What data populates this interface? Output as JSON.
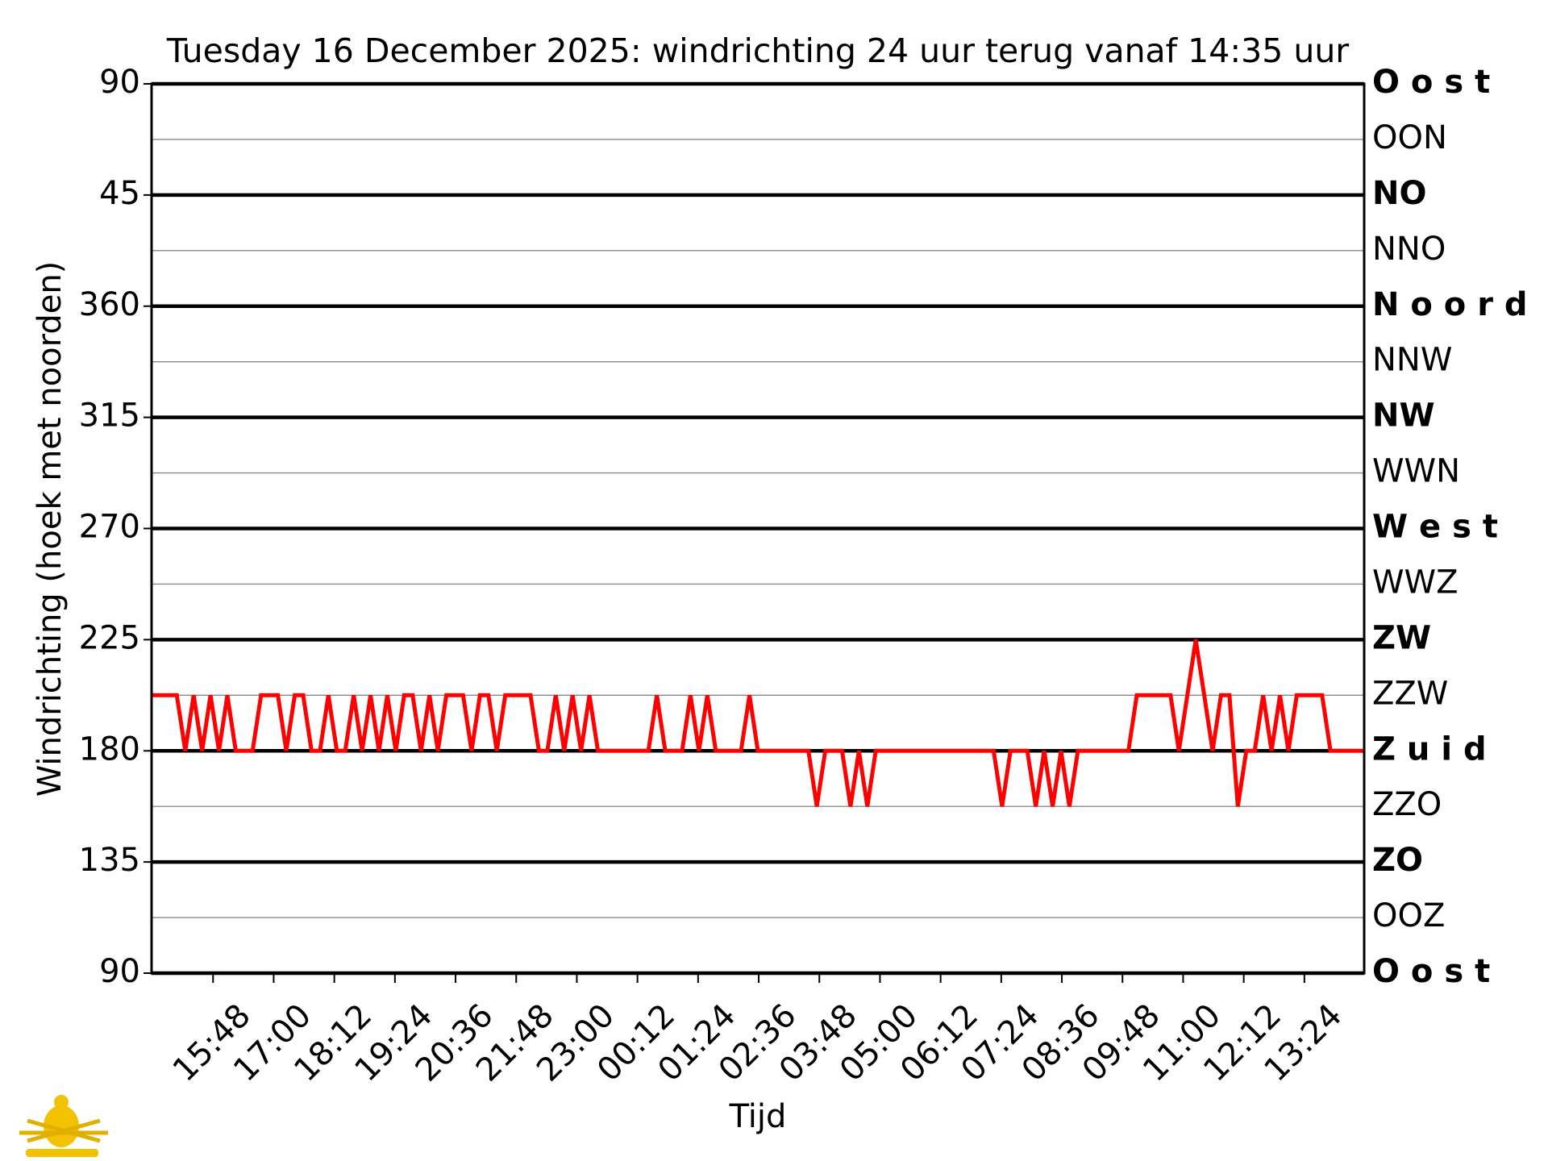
{
  "chart_data": {
    "type": "line",
    "title": "Tuesday 16 December 2025: windrichting 24 uur terug vanaf 14:35 uur",
    "xlabel": "Tijd",
    "ylabel": "Windrichting (hoek met noorden)",
    "xlim": [
      "2025-12-15 14:35",
      "2025-12-16 14:35"
    ],
    "xticks": [
      {
        "value": "2025-12-15 15:48",
        "label": "15:48"
      },
      {
        "value": "2025-12-15 17:00",
        "label": "17:00"
      },
      {
        "value": "2025-12-15 18:12",
        "label": "18:12"
      },
      {
        "value": "2025-12-15 19:24",
        "label": "19:24"
      },
      {
        "value": "2025-12-15 20:36",
        "label": "20:36"
      },
      {
        "value": "2025-12-15 21:48",
        "label": "21:48"
      },
      {
        "value": "2025-12-15 23:00",
        "label": "23:00"
      },
      {
        "value": "2025-12-16 00:12",
        "label": "00:12"
      },
      {
        "value": "2025-12-16 01:24",
        "label": "01:24"
      },
      {
        "value": "2025-12-16 02:36",
        "label": "02:36"
      },
      {
        "value": "2025-12-16 03:48",
        "label": "03:48"
      },
      {
        "value": "2025-12-16 05:00",
        "label": "05:00"
      },
      {
        "value": "2025-12-16 06:12",
        "label": "06:12"
      },
      {
        "value": "2025-12-16 07:24",
        "label": "07:24"
      },
      {
        "value": "2025-12-16 08:36",
        "label": "08:36"
      },
      {
        "value": "2025-12-16 09:48",
        "label": "09:48"
      },
      {
        "value": "2025-12-16 11:00",
        "label": "11:00"
      },
      {
        "value": "2025-12-16 12:12",
        "label": "12:12"
      },
      {
        "value": "2025-12-16 13:24",
        "label": "13:24"
      }
    ],
    "ylim": [
      90,
      450
    ],
    "yticks": [
      90,
      135,
      180,
      225,
      270,
      315,
      360,
      {
        "value": 405,
        "label": "45"
      },
      {
        "value": 450,
        "label": "90"
      }
    ],
    "y2lim": [
      90,
      450
    ],
    "y2ticks": [
      {
        "value": 90,
        "label": "O o s t"
      },
      {
        "value": 112.5,
        "label": "OOZ"
      },
      {
        "value": 135,
        "label": "ZO"
      },
      {
        "value": 157.5,
        "label": "ZZO"
      },
      {
        "value": 180,
        "label": "Z u i d"
      },
      {
        "value": 202.5,
        "label": "ZZW"
      },
      {
        "value": 225,
        "label": "ZW"
      },
      {
        "value": 247.5,
        "label": "WWZ"
      },
      {
        "value": 270,
        "label": "W e s t"
      },
      {
        "value": 292.5,
        "label": "WWN"
      },
      {
        "value": 315,
        "label": "NW"
      },
      {
        "value": 337.5,
        "label": "NNW"
      },
      {
        "value": 360,
        "label": "N o o r d"
      },
      {
        "value": 382.5,
        "label": "NNO"
      },
      {
        "value": 405,
        "label": "NO"
      },
      {
        "value": 427.5,
        "label": "OON"
      },
      {
        "value": 450,
        "label": "O o s t"
      }
    ],
    "grid": true,
    "x": [
      "2025-12-15 14:35",
      "2025-12-15 14:45",
      "2025-12-15 14:55",
      "2025-12-15 15:05",
      "2025-12-15 15:15",
      "2025-12-15 15:25",
      "2025-12-15 15:35",
      "2025-12-15 15:45",
      "2025-12-15 15:55",
      "2025-12-15 16:05",
      "2025-12-15 16:15",
      "2025-12-15 16:25",
      "2025-12-15 16:35",
      "2025-12-15 16:45",
      "2025-12-15 16:55",
      "2025-12-15 17:05",
      "2025-12-15 17:15",
      "2025-12-15 17:25",
      "2025-12-15 17:35",
      "2025-12-15 17:45",
      "2025-12-15 17:55",
      "2025-12-15 18:05",
      "2025-12-15 18:15",
      "2025-12-15 18:25",
      "2025-12-15 18:35",
      "2025-12-15 18:45",
      "2025-12-15 18:55",
      "2025-12-15 19:05",
      "2025-12-15 19:15",
      "2025-12-15 19:25",
      "2025-12-15 19:35",
      "2025-12-15 19:45",
      "2025-12-15 19:55",
      "2025-12-15 20:05",
      "2025-12-15 20:15",
      "2025-12-15 20:25",
      "2025-12-15 20:35",
      "2025-12-15 20:45",
      "2025-12-15 20:55",
      "2025-12-15 21:05",
      "2025-12-15 21:15",
      "2025-12-15 21:25",
      "2025-12-15 21:35",
      "2025-12-15 21:45",
      "2025-12-15 21:55",
      "2025-12-15 22:05",
      "2025-12-15 22:15",
      "2025-12-15 22:25",
      "2025-12-15 22:35",
      "2025-12-15 22:45",
      "2025-12-15 22:55",
      "2025-12-15 23:05",
      "2025-12-15 23:15",
      "2025-12-15 23:25",
      "2025-12-15 23:35",
      "2025-12-15 23:45",
      "2025-12-15 23:55",
      "2025-12-16 00:05",
      "2025-12-16 00:15",
      "2025-12-16 00:25",
      "2025-12-16 00:35",
      "2025-12-16 00:45",
      "2025-12-16 00:55",
      "2025-12-16 01:05",
      "2025-12-16 01:15",
      "2025-12-16 01:25",
      "2025-12-16 01:35",
      "2025-12-16 01:45",
      "2025-12-16 01:55",
      "2025-12-16 02:05",
      "2025-12-16 02:15",
      "2025-12-16 02:25",
      "2025-12-16 02:35",
      "2025-12-16 02:45",
      "2025-12-16 02:55",
      "2025-12-16 03:05",
      "2025-12-16 03:15",
      "2025-12-16 03:25",
      "2025-12-16 03:35",
      "2025-12-16 03:45",
      "2025-12-16 03:55",
      "2025-12-16 04:05",
      "2025-12-16 04:15",
      "2025-12-16 04:25",
      "2025-12-16 04:35",
      "2025-12-16 04:45",
      "2025-12-16 04:55",
      "2025-12-16 05:05",
      "2025-12-16 05:15",
      "2025-12-16 05:25",
      "2025-12-16 05:35",
      "2025-12-16 05:45",
      "2025-12-16 05:55",
      "2025-12-16 06:05",
      "2025-12-16 06:15",
      "2025-12-16 06:25",
      "2025-12-16 06:35",
      "2025-12-16 06:45",
      "2025-12-16 06:55",
      "2025-12-16 07:05",
      "2025-12-16 07:15",
      "2025-12-16 07:25",
      "2025-12-16 07:35",
      "2025-12-16 07:45",
      "2025-12-16 07:55",
      "2025-12-16 08:05",
      "2025-12-16 08:15",
      "2025-12-16 08:25",
      "2025-12-16 08:35",
      "2025-12-16 08:45",
      "2025-12-16 08:55",
      "2025-12-16 09:05",
      "2025-12-16 09:15",
      "2025-12-16 09:25",
      "2025-12-16 09:35",
      "2025-12-16 09:45",
      "2025-12-16 09:55",
      "2025-12-16 10:05",
      "2025-12-16 10:15",
      "2025-12-16 10:25",
      "2025-12-16 10:35",
      "2025-12-16 10:45",
      "2025-12-16 10:55",
      "2025-12-16 11:05",
      "2025-12-16 11:15",
      "2025-12-16 11:25",
      "2025-12-16 11:35",
      "2025-12-16 11:45",
      "2025-12-16 11:55",
      "2025-12-16 12:05",
      "2025-12-16 12:15",
      "2025-12-16 12:25",
      "2025-12-16 12:35",
      "2025-12-16 12:45",
      "2025-12-16 12:55",
      "2025-12-16 13:05",
      "2025-12-16 13:15",
      "2025-12-16 13:25",
      "2025-12-16 13:35",
      "2025-12-16 13:45",
      "2025-12-16 13:55",
      "2025-12-16 14:05",
      "2025-12-16 14:15",
      "2025-12-16 14:25",
      "2025-12-16 14:35"
    ],
    "series": [
      {
        "color": "#ff0000",
        "values": [
          202.5,
          202.5,
          202.5,
          202.5,
          180,
          202.5,
          180,
          202.5,
          180,
          202.5,
          180,
          180,
          180,
          202.5,
          202.5,
          202.5,
          180,
          202.5,
          202.5,
          180,
          180,
          202.5,
          180,
          180,
          202.5,
          180,
          202.5,
          180,
          202.5,
          180,
          202.5,
          202.5,
          180,
          202.5,
          180,
          202.5,
          202.5,
          202.5,
          180,
          202.5,
          202.5,
          180,
          202.5,
          202.5,
          202.5,
          202.5,
          180,
          180,
          202.5,
          180,
          202.5,
          180,
          202.5,
          180,
          180,
          180,
          180,
          180,
          180,
          180,
          202.5,
          180,
          180,
          180,
          202.5,
          180,
          202.5,
          180,
          180,
          180,
          180,
          202.5,
          180,
          180,
          180,
          180,
          180,
          180,
          180,
          157.5,
          180,
          180,
          180,
          157.5,
          180,
          157.5,
          180,
          180,
          180,
          180,
          180,
          180,
          180,
          180,
          180,
          180,
          180,
          180,
          180,
          180,
          180,
          157.5,
          180,
          180,
          180,
          157.5,
          180,
          157.5,
          180,
          157.5,
          180,
          180,
          180,
          180,
          180,
          180,
          180,
          202.5,
          202.5,
          202.5,
          202.5,
          202.5,
          180,
          202.5,
          225,
          202.5,
          180,
          202.5,
          202.5,
          157.5,
          180,
          180,
          202.5,
          180,
          202.5,
          180,
          202.5,
          202.5,
          202.5,
          202.5,
          180,
          180,
          180,
          180,
          180
        ]
      }
    ]
  }
}
